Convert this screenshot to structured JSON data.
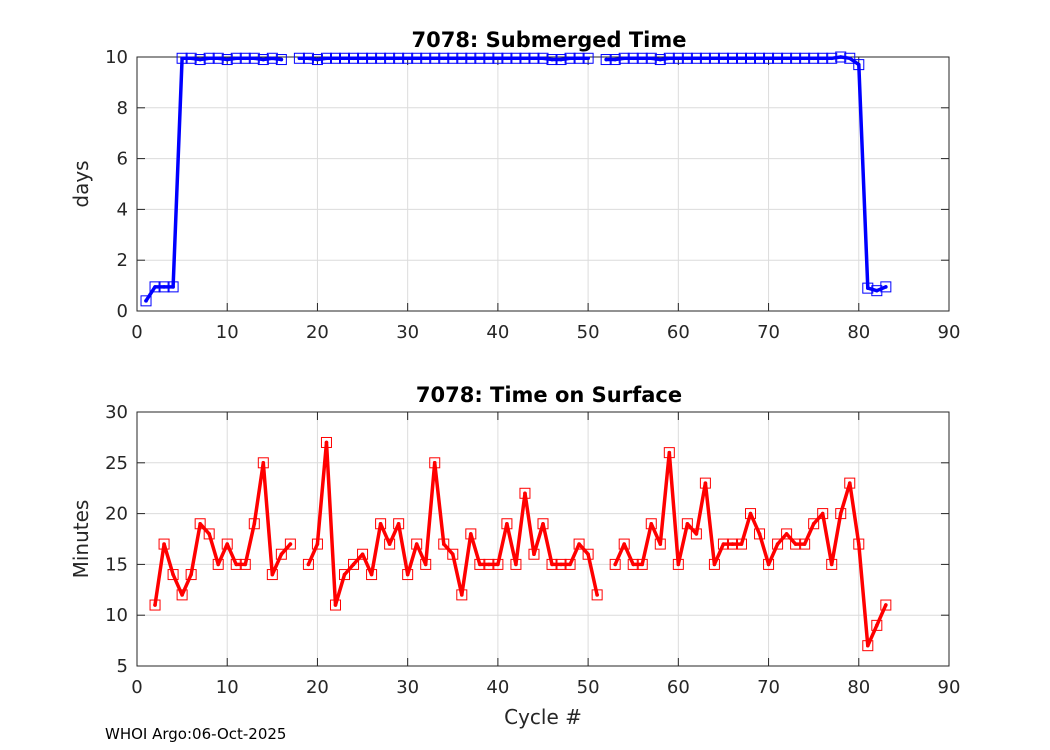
{
  "footer": "WHOI Argo:06-Oct-2025",
  "colors": {
    "blue": "#0000ff",
    "red": "#ff0000",
    "axis": "#262626",
    "grid": "#dcdcdc"
  },
  "chart_data": [
    {
      "type": "line",
      "title": "7078: Submerged Time",
      "xlabel": "",
      "ylabel": "days",
      "xlim": [
        0,
        90
      ],
      "ylim": [
        0,
        10
      ],
      "xticks": [
        "0",
        "10",
        "20",
        "30",
        "40",
        "50",
        "60",
        "70",
        "80",
        "90"
      ],
      "yticks": [
        "0",
        "2",
        "4",
        "6",
        "8",
        "10"
      ],
      "grid": true,
      "color": "#0000ff",
      "marker": "square",
      "series": [
        {
          "name": "Submerged Time",
          "x": [
            1,
            2,
            3,
            4,
            5,
            6,
            7,
            8,
            9,
            10,
            11,
            12,
            13,
            14,
            15,
            16
          ],
          "y": [
            0.4,
            0.95,
            0.95,
            0.95,
            9.95,
            9.95,
            9.9,
            9.95,
            9.95,
            9.9,
            9.95,
            9.95,
            9.95,
            9.9,
            9.95,
            9.9
          ]
        },
        {
          "name": "Submerged Time",
          "x": [
            18,
            19,
            20,
            21,
            22,
            23,
            24,
            25,
            26,
            27,
            28,
            29,
            30,
            31,
            32,
            33,
            34,
            35,
            36,
            37,
            38,
            39,
            40,
            41,
            42,
            43,
            44,
            45,
            46,
            47,
            48,
            49,
            50
          ],
          "y": [
            9.95,
            9.95,
            9.9,
            9.95,
            9.95,
            9.95,
            9.95,
            9.95,
            9.95,
            9.95,
            9.95,
            9.95,
            9.95,
            9.95,
            9.95,
            9.95,
            9.95,
            9.95,
            9.95,
            9.95,
            9.95,
            9.95,
            9.95,
            9.95,
            9.95,
            9.95,
            9.95,
            9.95,
            9.9,
            9.9,
            9.95,
            9.95,
            9.95
          ]
        },
        {
          "name": "Submerged Time",
          "x": [
            52,
            53,
            54,
            55,
            56,
            57,
            58,
            59,
            60,
            61,
            62,
            63,
            64,
            65,
            66,
            67,
            68,
            69,
            70,
            71,
            72,
            73,
            74,
            75,
            76,
            77,
            78,
            79,
            80,
            81,
            82,
            83
          ],
          "y": [
            9.9,
            9.9,
            9.95,
            9.95,
            9.95,
            9.95,
            9.9,
            9.95,
            9.95,
            9.95,
            9.95,
            9.95,
            9.95,
            9.95,
            9.95,
            9.95,
            9.95,
            9.95,
            9.95,
            9.95,
            9.95,
            9.95,
            9.95,
            9.95,
            9.95,
            9.95,
            10.0,
            9.95,
            9.7,
            0.9,
            0.8,
            0.95
          ]
        }
      ]
    },
    {
      "type": "line",
      "title": "7078: Time on Surface",
      "xlabel": "Cycle #",
      "ylabel": "Minutes",
      "xlim": [
        0,
        90
      ],
      "ylim": [
        5,
        30
      ],
      "xticks": [
        "0",
        "10",
        "20",
        "30",
        "40",
        "50",
        "60",
        "70",
        "80",
        "90"
      ],
      "yticks": [
        "5",
        "10",
        "15",
        "20",
        "25",
        "30"
      ],
      "grid": true,
      "color": "#ff0000",
      "marker": "square",
      "series": [
        {
          "name": "Time on Surface",
          "x": [
            2,
            3,
            4,
            5,
            6,
            7,
            8,
            9,
            10,
            11,
            12,
            13,
            14,
            15,
            16,
            17
          ],
          "y": [
            11,
            17,
            14,
            12,
            14,
            19,
            18,
            15,
            17,
            15,
            15,
            19,
            25,
            14,
            16,
            17
          ]
        },
        {
          "name": "Time on Surface",
          "x": [
            19,
            20,
            21,
            22,
            23,
            24,
            25,
            26,
            27,
            28,
            29,
            30,
            31,
            32,
            33,
            34,
            35,
            36,
            37,
            38,
            39,
            40,
            41,
            42,
            43,
            44,
            45,
            46,
            47,
            48,
            49,
            50,
            51
          ],
          "y": [
            15,
            17,
            27,
            11,
            14,
            15,
            16,
            14,
            19,
            17,
            19,
            14,
            17,
            15,
            25,
            17,
            16,
            12,
            18,
            15,
            15,
            15,
            19,
            15,
            22,
            16,
            19,
            15,
            15,
            15,
            17,
            16,
            12
          ]
        },
        {
          "name": "Time on Surface",
          "x": [
            53,
            54,
            55,
            56,
            57,
            58,
            59,
            60,
            61,
            62,
            63,
            64,
            65,
            66,
            67,
            68,
            69,
            70,
            71,
            72,
            73,
            74,
            75,
            76,
            77,
            78,
            79,
            80,
            81,
            82,
            83
          ],
          "y": [
            15,
            17,
            15,
            15,
            19,
            17,
            26,
            15,
            19,
            18,
            23,
            15,
            17,
            17,
            17,
            20,
            18,
            15,
            17,
            18,
            17,
            17,
            19,
            20,
            15,
            20,
            23,
            17,
            7,
            9,
            11
          ]
        }
      ]
    }
  ]
}
